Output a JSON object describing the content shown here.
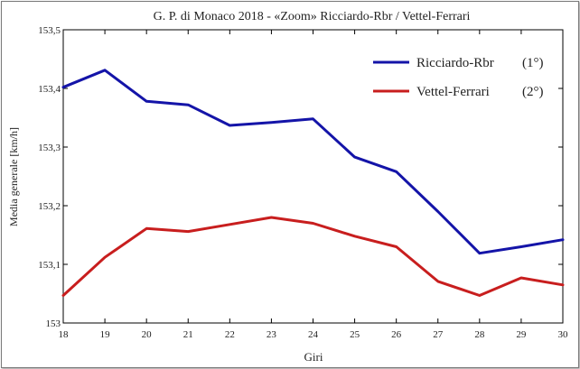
{
  "chart_data": {
    "type": "line",
    "title": "G. P. di Monaco 2018 - «Zoom» Ricciardo-Rbr / Vettel-Ferrari",
    "xlabel": "Giri",
    "ylabel": "Media generale  [km/h]",
    "x": [
      18,
      19,
      20,
      21,
      22,
      23,
      24,
      25,
      26,
      27,
      28,
      29,
      30
    ],
    "xticks": [
      "18",
      "19",
      "20",
      "21",
      "22",
      "23",
      "24",
      "25",
      "26",
      "27",
      "28",
      "29",
      "30"
    ],
    "yticks": [
      "153",
      "153,1",
      "153,2",
      "153,3",
      "153,4",
      "153,5"
    ],
    "xlim": [
      18,
      30
    ],
    "ylim": [
      153.0,
      153.5
    ],
    "grid": false,
    "legend_position": "top-right",
    "series": [
      {
        "name": "Ricciardo-Rbr",
        "legend_suffix": "(1°)",
        "color": "#1414a8",
        "values": [
          153.402,
          153.431,
          153.378,
          153.372,
          153.337,
          153.342,
          153.348,
          153.283,
          153.258,
          153.19,
          153.119,
          153.13,
          153.142
        ]
      },
      {
        "name": "Vettel-Ferrari",
        "legend_suffix": "(2°)",
        "color": "#c81e1e",
        "values": [
          153.047,
          153.112,
          153.161,
          153.156,
          153.168,
          153.18,
          153.17,
          153.148,
          153.13,
          153.071,
          153.047,
          153.077,
          153.065
        ]
      }
    ]
  }
}
